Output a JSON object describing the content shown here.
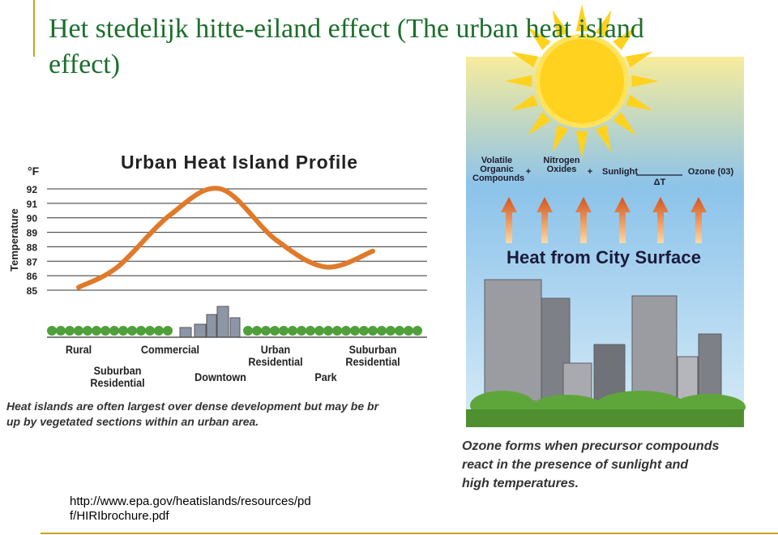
{
  "title": "Het stedelijk hitte-eiland effect (The urban heat island effect)",
  "profile": {
    "title": "Urban Heat Island Profile",
    "unit": "°F",
    "y_axis_label": "Temperature",
    "ylim": [
      85,
      92
    ],
    "yticks": [
      85,
      86,
      87,
      88,
      89,
      90,
      91,
      92
    ],
    "categories": [
      "Rural",
      "Suburban Residential",
      "Commercial",
      "Downtown",
      "Urban Residential",
      "Park",
      "Suburban Residential"
    ],
    "values": [
      85.2,
      86.6,
      90.2,
      92,
      88.5,
      86.6,
      87.7
    ],
    "caption_lines": [
      "Heat islands are often largest over dense development but may be br",
      "up by vegetated sections within an urban area."
    ]
  },
  "ozone": {
    "formula": [
      "Volatile Organic Compounds",
      "+",
      "Nitrogen Oxides",
      "+",
      "Sunlight",
      "Ozone (03)"
    ],
    "delta": "ΔT",
    "heading": "Heat from City Surface",
    "caption_lines": [
      "Ozone forms when precursor compounds",
      "react in the presence of sunlight and",
      "high temperatures."
    ]
  },
  "link_lines": [
    "http://www.epa.gov/heatislands/resources/pd",
    "f/HIRIbrochure.pdf"
  ]
}
